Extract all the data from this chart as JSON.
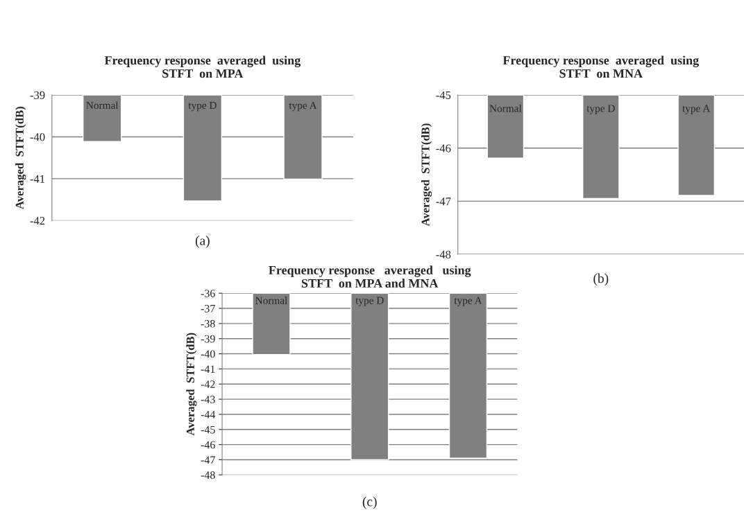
{
  "chart_data": [
    {
      "type": "bar",
      "title": "Frequency response  averaged  using\nSTFT  on MPA",
      "ylabel": "Averaged  STFT(dB)",
      "categories": [
        "Normal",
        "type D",
        "type A"
      ],
      "values": [
        -40.11,
        -41.53,
        -41.01
      ],
      "color": "#808080",
      "ylim": [
        -42,
        -39
      ],
      "yticks": [
        -42,
        -41,
        -40,
        -39
      ],
      "grid": "y",
      "annotations": [
        "(a)"
      ]
    },
    {
      "type": "bar",
      "title": "Frequency response  averaged  using\nSTFT  on MNA",
      "ylabel": "Averaged  STFT(dB)",
      "categories": [
        "Normal",
        "type D",
        "type A"
      ],
      "values": [
        -46.19,
        -46.95,
        -46.89
      ],
      "color": "#808080",
      "ylim": [
        -48,
        -45
      ],
      "yticks": [
        -48,
        -47,
        -46,
        -45
      ],
      "grid": "y",
      "annotations": [
        "(b)"
      ]
    },
    {
      "type": "bar",
      "title": "Frequency response   averaged   using\nSTFT  on MPA and MNA",
      "ylabel": "Averaged  STFT(dB)",
      "categories": [
        "Normal",
        "type D",
        "type A"
      ],
      "values": [
        -40.05,
        -47.0,
        -46.9
      ],
      "color": "#808080",
      "ylim": [
        -48,
        -36
      ],
      "yticks": [
        -48,
        -47,
        -46,
        -45,
        -44,
        -43,
        -42,
        -41,
        -40,
        -39,
        -38,
        -37,
        -36
      ],
      "grid": "y",
      "annotations": [
        "(c)"
      ]
    }
  ]
}
